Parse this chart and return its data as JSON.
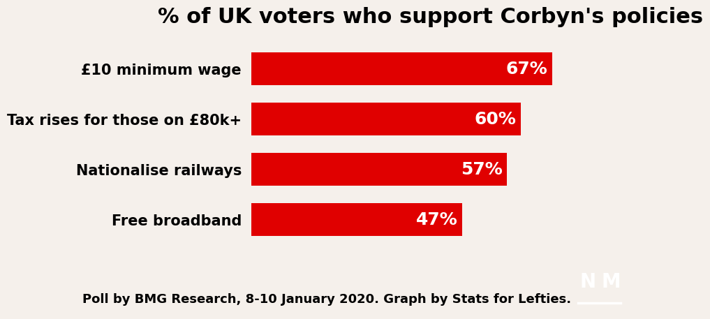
{
  "title": "% of UK voters who support Corbyn's policies",
  "categories": [
    "£10 minimum wage",
    "Tax rises for those on £80k+",
    "Nationalise railways",
    "Free broadband"
  ],
  "values": [
    67,
    60,
    57,
    47
  ],
  "bar_color": "#E00000",
  "background_color": "#F5F0EB",
  "text_color": "#000000",
  "bar_label_color": "#FFFFFF",
  "title_fontsize": 22,
  "label_fontsize": 15,
  "bar_label_fontsize": 18,
  "footer_text": "Poll by BMG Research, 8-10 January 2020. Graph by Stats for Lefties.",
  "footer_fontsize": 13,
  "xlim": [
    0,
    80
  ],
  "logo_box_color": "#000000",
  "logo_text_color": "#FFFFFF"
}
